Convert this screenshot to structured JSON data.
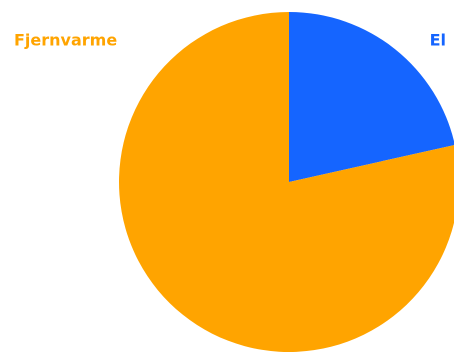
{
  "chart_data": {
    "type": "pie",
    "categories": [
      "El",
      "Fjernvarme"
    ],
    "values": [
      21.5,
      78.5
    ],
    "colors": [
      "#1565ff",
      "#ffa400"
    ],
    "start_angle": 0,
    "direction": "clockwise"
  }
}
